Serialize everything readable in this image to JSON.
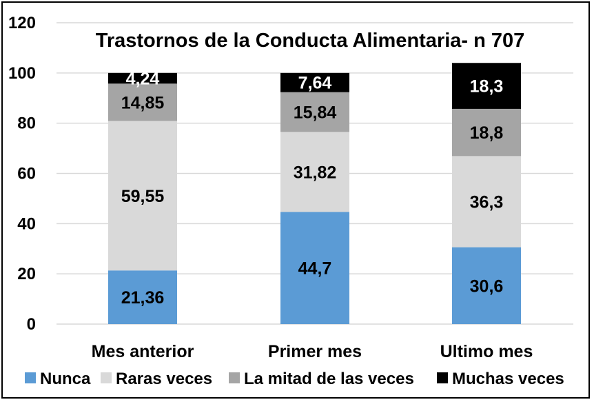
{
  "chart_data": {
    "type": "bar",
    "stacked": true,
    "title": "Trastornos de la Conducta Alimentaria- n 707",
    "xlabel": "",
    "ylabel": "",
    "categories": [
      "Mes anterior",
      "Primer mes",
      "Ultimo mes"
    ],
    "ylim": [
      0,
      120
    ],
    "yticks": [
      0,
      20,
      40,
      60,
      80,
      100,
      120
    ],
    "grid": true,
    "legend_position": "bottom",
    "series": [
      {
        "name": "Nunca",
        "color": "#5b9bd5",
        "label_color": "#000000",
        "values": [
          21.36,
          44.7,
          30.6
        ],
        "labels": [
          "21,36",
          "44,7",
          "30,6"
        ]
      },
      {
        "name": "Raras veces",
        "color": "#d9d9d9",
        "label_color": "#000000",
        "values": [
          59.55,
          31.82,
          36.3
        ],
        "labels": [
          "59,55",
          "31,82",
          "36,3"
        ]
      },
      {
        "name": "La mitad de las veces",
        "color": "#a5a5a5",
        "label_color": "#000000",
        "values": [
          14.85,
          15.84,
          18.8
        ],
        "labels": [
          "14,85",
          "15,84",
          "18,8"
        ]
      },
      {
        "name": "Muchas veces",
        "color": "#000000",
        "label_color": "#ffffff",
        "values": [
          4.24,
          7.64,
          18.3
        ],
        "labels": [
          "4,24",
          "7,64",
          "18,3"
        ]
      }
    ]
  }
}
